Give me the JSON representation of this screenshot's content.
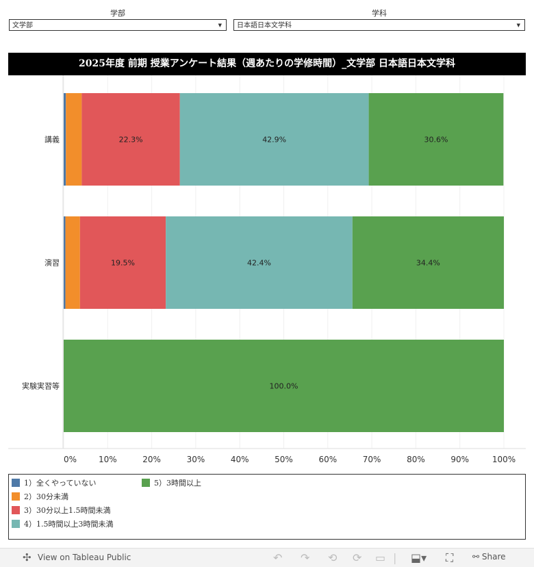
{
  "filters": {
    "faculty": {
      "label": "学部",
      "value": "文学部"
    },
    "department": {
      "label": "学科",
      "value": "日本語日本文学科"
    }
  },
  "title": "2025年度  前期  授業アンケート結果（週あたりの学修時間）_文学部  日本語日本文学科",
  "chart_data": {
    "type": "bar",
    "orientation": "horizontal",
    "stacked": true,
    "categories": [
      "講義",
      "演習",
      "実験実習等"
    ],
    "series": [
      {
        "name": "1）全くやっていない",
        "color": "#4e79a7",
        "values": [
          0.5,
          0.4,
          0.0
        ]
      },
      {
        "name": "2）30分未満",
        "color": "#f28e2b",
        "values": [
          3.6,
          3.3,
          0.0
        ]
      },
      {
        "name": "3）30分以上1.5時間未満",
        "color": "#e15759",
        "values": [
          22.3,
          19.5,
          0.0
        ]
      },
      {
        "name": "4）1.5時間以上3時間未満",
        "color": "#76b7b2",
        "values": [
          42.9,
          42.4,
          0.0
        ]
      },
      {
        "name": "5）3時間以上",
        "color": "#59a14f",
        "values": [
          30.6,
          34.4,
          100.0
        ]
      }
    ],
    "data_labels": [
      [
        "",
        "",
        "22.3%",
        "42.9%",
        "30.6%"
      ],
      [
        "",
        "",
        "19.5%",
        "42.4%",
        "34.4%"
      ],
      [
        "",
        "",
        "",
        "",
        "100.0%"
      ]
    ],
    "xticks": [
      "0%",
      "10%",
      "20%",
      "30%",
      "40%",
      "50%",
      "60%",
      "70%",
      "80%",
      "90%",
      "100%"
    ],
    "xlim": [
      0,
      100
    ],
    "grid": true,
    "legend_position": "bottom"
  },
  "footer": {
    "view_label": "View on Tableau Public",
    "share_label": "Share"
  }
}
